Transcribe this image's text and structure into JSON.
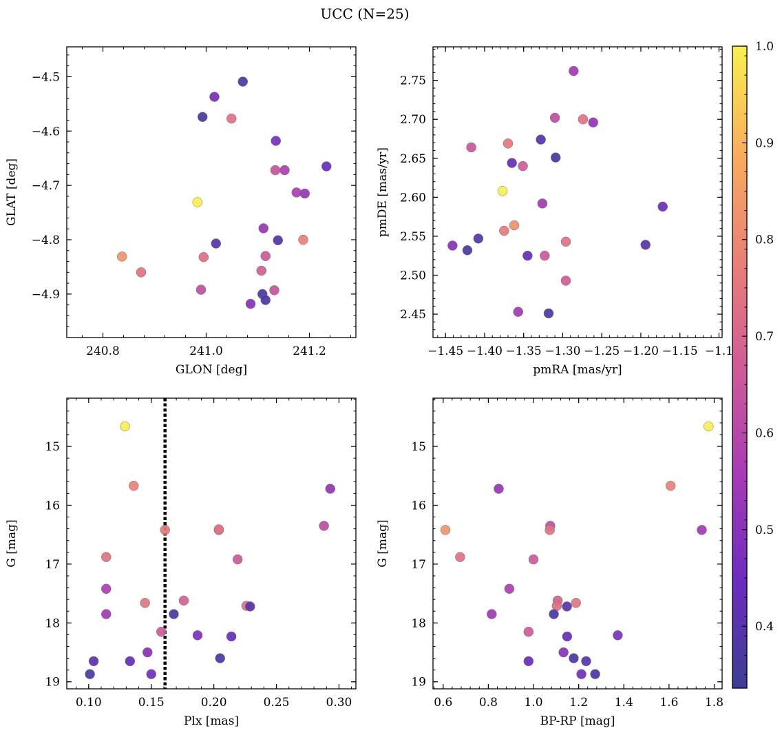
{
  "suptitle": "UCC (N=25)",
  "colormap": {
    "name": "plasma",
    "stops": [
      "#3b3f94",
      "#6c2cbf",
      "#a73bb5",
      "#cf5c97",
      "#e98077",
      "#f9ad5d",
      "#f7f04f"
    ],
    "range": [
      0.336,
      1.0
    ],
    "ticks": [
      0.4,
      0.5,
      0.6,
      0.7,
      0.8,
      0.9,
      1.0
    ],
    "tick_labels": [
      "0.4",
      "0.5",
      "0.6",
      "0.7",
      "0.8",
      "0.9",
      "1.0"
    ]
  },
  "chart_data": [
    {
      "type": "scatter",
      "xlabel": "GLON [deg]",
      "ylabel": "GLAT [deg]",
      "xlim": [
        240.73,
        241.29
      ],
      "ylim": [
        -4.98,
        -4.445
      ],
      "invert_y": false,
      "xticks": [
        240.8,
        241.0,
        241.2
      ],
      "xtick_labels": [
        "240.8",
        "241.0",
        "241.2"
      ],
      "yticks": [
        -4.5,
        -4.6,
        -4.7,
        -4.8,
        -4.9
      ],
      "ytick_labels": [
        "−4.5",
        "−4.6",
        "−4.7",
        "−4.8",
        "−4.9"
      ],
      "points": [
        {
          "x": 241.071,
          "y": -4.509,
          "c": 0.37
        },
        {
          "x": 241.016,
          "y": -4.537,
          "c": 0.47
        },
        {
          "x": 240.993,
          "y": -4.574,
          "c": 0.36
        },
        {
          "x": 241.049,
          "y": -4.577,
          "c": 0.74
        },
        {
          "x": 241.135,
          "y": -4.618,
          "c": 0.47
        },
        {
          "x": 241.233,
          "y": -4.665,
          "c": 0.44
        },
        {
          "x": 241.134,
          "y": -4.672,
          "c": 0.64
        },
        {
          "x": 241.152,
          "y": -4.672,
          "c": 0.57
        },
        {
          "x": 241.175,
          "y": -4.713,
          "c": 0.57
        },
        {
          "x": 241.191,
          "y": -4.715,
          "c": 0.53
        },
        {
          "x": 240.983,
          "y": -4.731,
          "c": 1.0
        },
        {
          "x": 241.111,
          "y": -4.779,
          "c": 0.53
        },
        {
          "x": 241.019,
          "y": -4.807,
          "c": 0.4
        },
        {
          "x": 241.139,
          "y": -4.801,
          "c": 0.39
        },
        {
          "x": 241.188,
          "y": -4.8,
          "c": 0.78
        },
        {
          "x": 240.837,
          "y": -4.831,
          "c": 0.83
        },
        {
          "x": 240.995,
          "y": -4.832,
          "c": 0.73
        },
        {
          "x": 241.115,
          "y": -4.83,
          "c": 0.66
        },
        {
          "x": 240.874,
          "y": -4.86,
          "c": 0.74
        },
        {
          "x": 241.107,
          "y": -4.857,
          "c": 0.68
        },
        {
          "x": 240.99,
          "y": -4.892,
          "c": 0.62
        },
        {
          "x": 241.132,
          "y": -4.893,
          "c": 0.64
        },
        {
          "x": 241.109,
          "y": -4.9,
          "c": 0.37
        },
        {
          "x": 241.115,
          "y": -4.911,
          "c": 0.38
        },
        {
          "x": 241.086,
          "y": -4.918,
          "c": 0.5
        }
      ]
    },
    {
      "type": "scatter",
      "xlabel": "pmRA [mas/yr]",
      "ylabel": "pmDE [mas/yr]",
      "xlim": [
        -1.466,
        -1.096
      ],
      "ylim": [
        2.42,
        2.793
      ],
      "invert_y": false,
      "xticks": [
        -1.45,
        -1.4,
        -1.35,
        -1.3,
        -1.25,
        -1.2,
        -1.15,
        -1.1
      ],
      "xtick_labels": [
        "−1.45",
        "−1.40",
        "−1.35",
        "−1.30",
        "−1.25",
        "−1.20",
        "−1.15",
        "−1.1"
      ],
      "yticks": [
        2.45,
        2.5,
        2.55,
        2.6,
        2.65,
        2.7,
        2.75
      ],
      "ytick_labels": [
        "2.45",
        "2.50",
        "2.55",
        "2.60",
        "2.65",
        "2.70",
        "2.75"
      ],
      "points": [
        {
          "x": -1.286,
          "y": 2.762,
          "c": 0.55
        },
        {
          "x": -1.31,
          "y": 2.702,
          "c": 0.62
        },
        {
          "x": -1.274,
          "y": 2.7,
          "c": 0.74
        },
        {
          "x": -1.261,
          "y": 2.696,
          "c": 0.52
        },
        {
          "x": -1.328,
          "y": 2.674,
          "c": 0.4
        },
        {
          "x": -1.37,
          "y": 2.669,
          "c": 0.76
        },
        {
          "x": -1.417,
          "y": 2.664,
          "c": 0.65
        },
        {
          "x": -1.309,
          "y": 2.651,
          "c": 0.36
        },
        {
          "x": -1.365,
          "y": 2.644,
          "c": 0.43
        },
        {
          "x": -1.351,
          "y": 2.64,
          "c": 0.67
        },
        {
          "x": -1.377,
          "y": 2.608,
          "c": 1.0
        },
        {
          "x": -1.326,
          "y": 2.592,
          "c": 0.55
        },
        {
          "x": -1.172,
          "y": 2.588,
          "c": 0.45
        },
        {
          "x": -1.362,
          "y": 2.564,
          "c": 0.82
        },
        {
          "x": -1.375,
          "y": 2.557,
          "c": 0.77
        },
        {
          "x": -1.408,
          "y": 2.547,
          "c": 0.4
        },
        {
          "x": -1.296,
          "y": 2.543,
          "c": 0.74
        },
        {
          "x": -1.194,
          "y": 2.539,
          "c": 0.4
        },
        {
          "x": -1.441,
          "y": 2.538,
          "c": 0.5
        },
        {
          "x": -1.422,
          "y": 2.532,
          "c": 0.37
        },
        {
          "x": -1.345,
          "y": 2.525,
          "c": 0.42
        },
        {
          "x": -1.323,
          "y": 2.525,
          "c": 0.66
        },
        {
          "x": -1.296,
          "y": 2.493,
          "c": 0.67
        },
        {
          "x": -1.357,
          "y": 2.453,
          "c": 0.55
        },
        {
          "x": -1.318,
          "y": 2.451,
          "c": 0.38
        }
      ]
    },
    {
      "type": "scatter",
      "xlabel": "Plx [mas]",
      "ylabel": "G [mag]",
      "xlim": [
        0.0825,
        0.3135
      ],
      "ylim": [
        14.18,
        19.12
      ],
      "invert_y": true,
      "xticks": [
        0.1,
        0.15,
        0.2,
        0.25,
        0.3
      ],
      "xtick_labels": [
        "0.10",
        "0.15",
        "0.20",
        "0.25",
        "0.30"
      ],
      "yticks": [
        15,
        16,
        17,
        18,
        19
      ],
      "ytick_labels": [
        "15",
        "16",
        "17",
        "18",
        "19"
      ],
      "vline": {
        "x": 0.161,
        "style": "dotted",
        "color": "#000000"
      },
      "points": [
        {
          "x": 0.129,
          "y": 14.66,
          "c": 1.0
        },
        {
          "x": 0.136,
          "y": 15.67,
          "c": 0.78
        },
        {
          "x": 0.293,
          "y": 15.72,
          "c": 0.53
        },
        {
          "x": 0.288,
          "y": 16.35,
          "c": 0.62
        },
        {
          "x": 0.161,
          "y": 16.42,
          "c": 0.76
        },
        {
          "x": 0.204,
          "y": 16.42,
          "c": 0.7
        },
        {
          "x": 0.204,
          "y": 16.41,
          "c": 0.74
        },
        {
          "x": 0.114,
          "y": 16.88,
          "c": 0.74
        },
        {
          "x": 0.219,
          "y": 16.92,
          "c": 0.66
        },
        {
          "x": 0.114,
          "y": 17.42,
          "c": 0.57
        },
        {
          "x": 0.176,
          "y": 17.62,
          "c": 0.69
        },
        {
          "x": 0.145,
          "y": 17.66,
          "c": 0.75
        },
        {
          "x": 0.226,
          "y": 17.71,
          "c": 0.73
        },
        {
          "x": 0.229,
          "y": 17.72,
          "c": 0.4
        },
        {
          "x": 0.114,
          "y": 17.85,
          "c": 0.55
        },
        {
          "x": 0.168,
          "y": 17.85,
          "c": 0.38
        },
        {
          "x": 0.158,
          "y": 18.15,
          "c": 0.67
        },
        {
          "x": 0.187,
          "y": 18.21,
          "c": 0.48
        },
        {
          "x": 0.214,
          "y": 18.23,
          "c": 0.43
        },
        {
          "x": 0.147,
          "y": 18.5,
          "c": 0.5
        },
        {
          "x": 0.205,
          "y": 18.6,
          "c": 0.38
        },
        {
          "x": 0.104,
          "y": 18.65,
          "c": 0.4
        },
        {
          "x": 0.133,
          "y": 18.65,
          "c": 0.43
        },
        {
          "x": 0.101,
          "y": 18.87,
          "c": 0.38
        },
        {
          "x": 0.15,
          "y": 18.87,
          "c": 0.46
        }
      ]
    },
    {
      "type": "scatter",
      "xlabel": "BP-RP [mag]",
      "ylabel": "G [mag]",
      "xlim": [
        0.555,
        1.835
      ],
      "ylim": [
        14.18,
        19.12
      ],
      "invert_y": true,
      "xticks": [
        0.6,
        0.8,
        1.0,
        1.2,
        1.4,
        1.6,
        1.8
      ],
      "xtick_labels": [
        "0.6",
        "0.8",
        "1.0",
        "1.2",
        "1.4",
        "1.6",
        "1.8"
      ],
      "yticks": [
        15,
        16,
        17,
        18,
        19
      ],
      "ytick_labels": [
        "15",
        "16",
        "17",
        "18",
        "19"
      ],
      "points": [
        {
          "x": 1.775,
          "y": 14.66,
          "c": 1.0
        },
        {
          "x": 1.607,
          "y": 15.67,
          "c": 0.78
        },
        {
          "x": 0.846,
          "y": 15.72,
          "c": 0.53
        },
        {
          "x": 1.074,
          "y": 16.35,
          "c": 0.62
        },
        {
          "x": 1.072,
          "y": 16.42,
          "c": 0.74
        },
        {
          "x": 0.61,
          "y": 16.42,
          "c": 0.83
        },
        {
          "x": 1.745,
          "y": 16.42,
          "c": 0.55
        },
        {
          "x": 0.675,
          "y": 16.88,
          "c": 0.74
        },
        {
          "x": 1.0,
          "y": 16.92,
          "c": 0.66
        },
        {
          "x": 0.893,
          "y": 17.42,
          "c": 0.57
        },
        {
          "x": 1.107,
          "y": 17.62,
          "c": 0.69
        },
        {
          "x": 1.188,
          "y": 17.66,
          "c": 0.75
        },
        {
          "x": 1.103,
          "y": 17.71,
          "c": 0.73
        },
        {
          "x": 1.148,
          "y": 17.72,
          "c": 0.4
        },
        {
          "x": 0.815,
          "y": 17.85,
          "c": 0.55
        },
        {
          "x": 1.09,
          "y": 17.85,
          "c": 0.38
        },
        {
          "x": 0.978,
          "y": 18.15,
          "c": 0.67
        },
        {
          "x": 1.373,
          "y": 18.21,
          "c": 0.48
        },
        {
          "x": 1.149,
          "y": 18.23,
          "c": 0.43
        },
        {
          "x": 1.133,
          "y": 18.5,
          "c": 0.5
        },
        {
          "x": 1.178,
          "y": 18.6,
          "c": 0.38
        },
        {
          "x": 0.978,
          "y": 18.65,
          "c": 0.43
        },
        {
          "x": 1.233,
          "y": 18.65,
          "c": 0.4
        },
        {
          "x": 1.212,
          "y": 18.87,
          "c": 0.46
        },
        {
          "x": 1.273,
          "y": 18.87,
          "c": 0.38
        }
      ]
    }
  ]
}
